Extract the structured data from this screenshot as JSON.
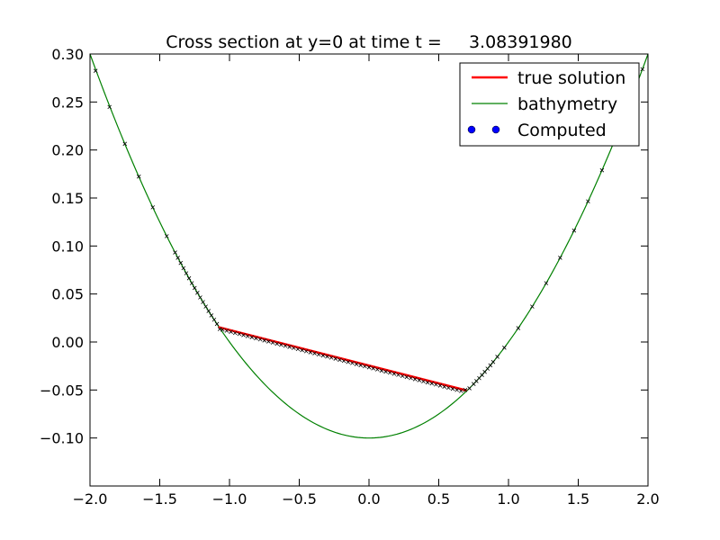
{
  "chart_data": {
    "type": "line",
    "title": "Cross section at y=0 at time t =     3.08391980",
    "xlabel": "",
    "ylabel": "",
    "xlim": [
      -2.0,
      2.0
    ],
    "ylim": [
      -0.15,
      0.3
    ],
    "x_ticks": [
      "−2.0",
      "−1.5",
      "−1.0",
      "−0.5",
      "0.0",
      "0.5",
      "1.0",
      "1.5",
      "2.0"
    ],
    "x_tick_values": [
      -2.0,
      -1.5,
      -1.0,
      -0.5,
      0.0,
      0.5,
      1.0,
      1.5,
      2.0
    ],
    "y_ticks": [
      "0.30",
      "0.25",
      "0.20",
      "0.15",
      "0.10",
      "0.05",
      "0.00",
      "−0.05",
      "−0.10"
    ],
    "y_tick_values": [
      0.3,
      0.25,
      0.2,
      0.15,
      0.1,
      0.05,
      0.0,
      -0.05,
      -0.1
    ],
    "grid": false,
    "legend_position": "top-right",
    "series": [
      {
        "name": "true solution",
        "style": "line",
        "color": "#ff0000",
        "x": [
          -1.08,
          0.7
        ],
        "y": [
          0.0155,
          -0.0505
        ]
      },
      {
        "name": "bathymetry",
        "style": "line",
        "color": "#008000",
        "function": "y = 0.1*x^2 - 0.1",
        "x_range": [
          -2.0,
          2.0
        ]
      },
      {
        "name": "Computed",
        "style": "points",
        "color": "#000000",
        "legend_color": "#0000ff",
        "x": [
          -1.96,
          -1.86,
          -1.75,
          -1.65,
          -1.55,
          -1.45,
          -1.39,
          -1.37,
          -1.35,
          -1.33,
          -1.31,
          -1.29,
          -1.27,
          -1.25,
          -1.23,
          -1.21,
          -1.19,
          -1.17,
          -1.15,
          -1.13,
          -1.11,
          -1.09,
          -1.07,
          -1.05,
          -1.02,
          -0.99,
          -0.96,
          -0.93,
          -0.9,
          -0.87,
          -0.84,
          -0.81,
          -0.78,
          -0.75,
          -0.72,
          -0.69,
          -0.66,
          -0.63,
          -0.6,
          -0.57,
          -0.54,
          -0.51,
          -0.48,
          -0.45,
          -0.42,
          -0.39,
          -0.36,
          -0.33,
          -0.3,
          -0.27,
          -0.24,
          -0.21,
          -0.18,
          -0.15,
          -0.12,
          -0.09,
          -0.06,
          -0.03,
          0.0,
          0.03,
          0.06,
          0.09,
          0.12,
          0.15,
          0.18,
          0.21,
          0.24,
          0.27,
          0.3,
          0.33,
          0.36,
          0.39,
          0.42,
          0.45,
          0.48,
          0.51,
          0.54,
          0.57,
          0.6,
          0.63,
          0.66,
          0.69,
          0.72,
          0.75,
          0.77,
          0.79,
          0.81,
          0.83,
          0.85,
          0.87,
          0.89,
          0.92,
          0.97,
          1.07,
          1.17,
          1.27,
          1.37,
          1.47,
          1.57,
          1.67,
          1.77,
          1.87,
          1.96
        ],
        "y": [
          0.2825,
          0.2448,
          0.2064,
          0.1723,
          0.1403,
          0.1103,
          0.0932,
          0.0877,
          0.0823,
          0.0769,
          0.0716,
          0.0664,
          0.0613,
          0.0563,
          0.0513,
          0.0464,
          0.0416,
          0.0369,
          0.0323,
          0.0277,
          0.0232,
          0.0188,
          0.0135,
          0.0128,
          0.0117,
          0.0106,
          0.0094,
          0.0083,
          0.0072,
          0.0061,
          0.005,
          0.0038,
          0.0027,
          0.0016,
          0.0005,
          -0.0006,
          -0.0018,
          -0.0029,
          -0.004,
          -0.0051,
          -0.0062,
          -0.0074,
          -0.0085,
          -0.0096,
          -0.0107,
          -0.0118,
          -0.013,
          -0.0141,
          -0.0152,
          -0.0163,
          -0.0174,
          -0.0186,
          -0.0197,
          -0.0208,
          -0.0219,
          -0.023,
          -0.0242,
          -0.0253,
          -0.0264,
          -0.0275,
          -0.0286,
          -0.0298,
          -0.0309,
          -0.032,
          -0.0331,
          -0.0342,
          -0.0354,
          -0.0365,
          -0.0376,
          -0.0387,
          -0.0398,
          -0.041,
          -0.0421,
          -0.0432,
          -0.0443,
          -0.0454,
          -0.0466,
          -0.0477,
          -0.0488,
          -0.0499,
          -0.051,
          -0.05,
          -0.0482,
          -0.0438,
          -0.0407,
          -0.0376,
          -0.0344,
          -0.0311,
          -0.0278,
          -0.0243,
          -0.0208,
          -0.0154,
          -0.0059,
          0.0145,
          0.0369,
          0.0613,
          0.0877,
          0.1161,
          0.1465,
          0.1789,
          0.2133,
          0.2497,
          0.2842
        ]
      }
    ]
  }
}
